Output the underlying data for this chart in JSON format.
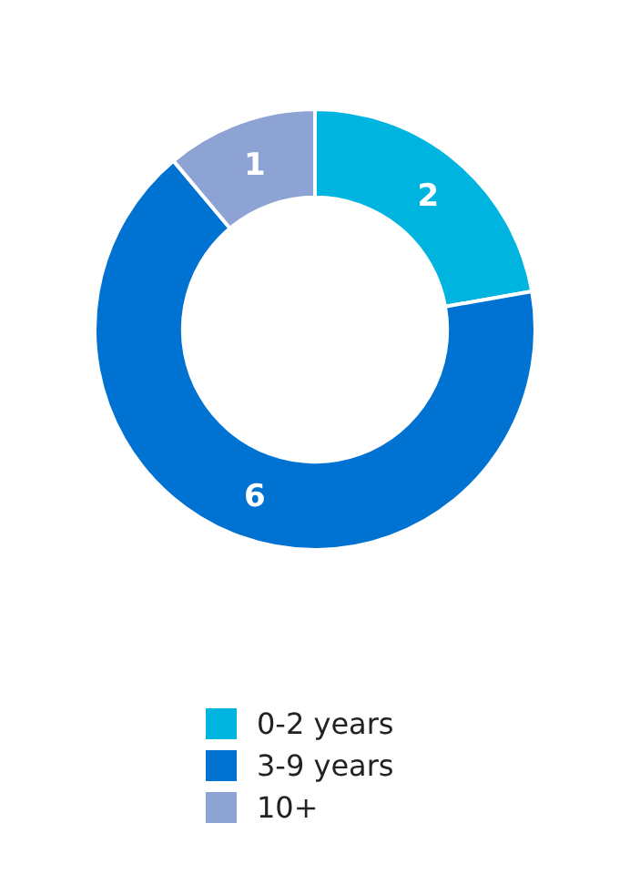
{
  "chart_data": {
    "type": "donut",
    "categories": [
      "0-2 years",
      "3-9 years",
      "10+"
    ],
    "values": [
      2,
      6,
      1
    ],
    "colors": [
      "#00b4e0",
      "#0072d2",
      "#8da3d3"
    ],
    "data_labels": true,
    "legend": "bottom"
  }
}
